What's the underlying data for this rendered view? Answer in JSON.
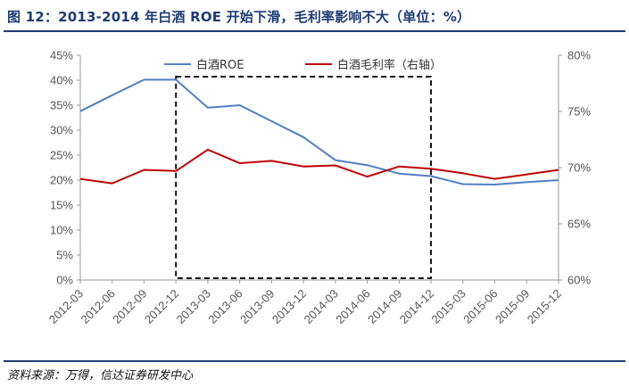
{
  "title": "图 12：2013-2014 年白酒 ROE 开始下滑，毛利率影响不大（单位：%）",
  "source": "资料来源：万得，信达证券研发中心",
  "chart_data": {
    "type": "line",
    "categories": [
      "2012-03",
      "2012-06",
      "2012-09",
      "2012-12",
      "2013-03",
      "2013-06",
      "2013-09",
      "2013-12",
      "2014-03",
      "2014-06",
      "2014-09",
      "2014-12",
      "2015-03",
      "2015-06",
      "2015-09",
      "2015-12"
    ],
    "series": [
      {
        "name": "白酒ROE",
        "axis": "left",
        "color": "#4f7fc4",
        "values": [
          33.8,
          37.0,
          40.1,
          40.1,
          34.5,
          35.0,
          31.8,
          28.6,
          24.0,
          23.0,
          21.3,
          20.8,
          19.2,
          19.1,
          19.6,
          20.0
        ]
      },
      {
        "name": "白酒毛利率（右轴）",
        "axis": "right",
        "color": "#c00000",
        "values": [
          69.0,
          68.6,
          69.8,
          69.7,
          71.6,
          70.4,
          70.6,
          70.1,
          70.2,
          69.2,
          70.1,
          69.9,
          69.5,
          69.0,
          69.4,
          69.8
        ]
      }
    ],
    "y_left": {
      "min": 0,
      "max": 45,
      "step": 5,
      "ticks": [
        "0%",
        "5%",
        "10%",
        "15%",
        "20%",
        "25%",
        "30%",
        "35%",
        "40%",
        "45%"
      ]
    },
    "y_right": {
      "min": 60,
      "max": 80,
      "step": 5,
      "ticks": [
        "60%",
        "65%",
        "70%",
        "75%",
        "80%"
      ]
    },
    "highlight_range": [
      "2012-12",
      "2014-12"
    ],
    "grid": false,
    "legend": "top"
  }
}
